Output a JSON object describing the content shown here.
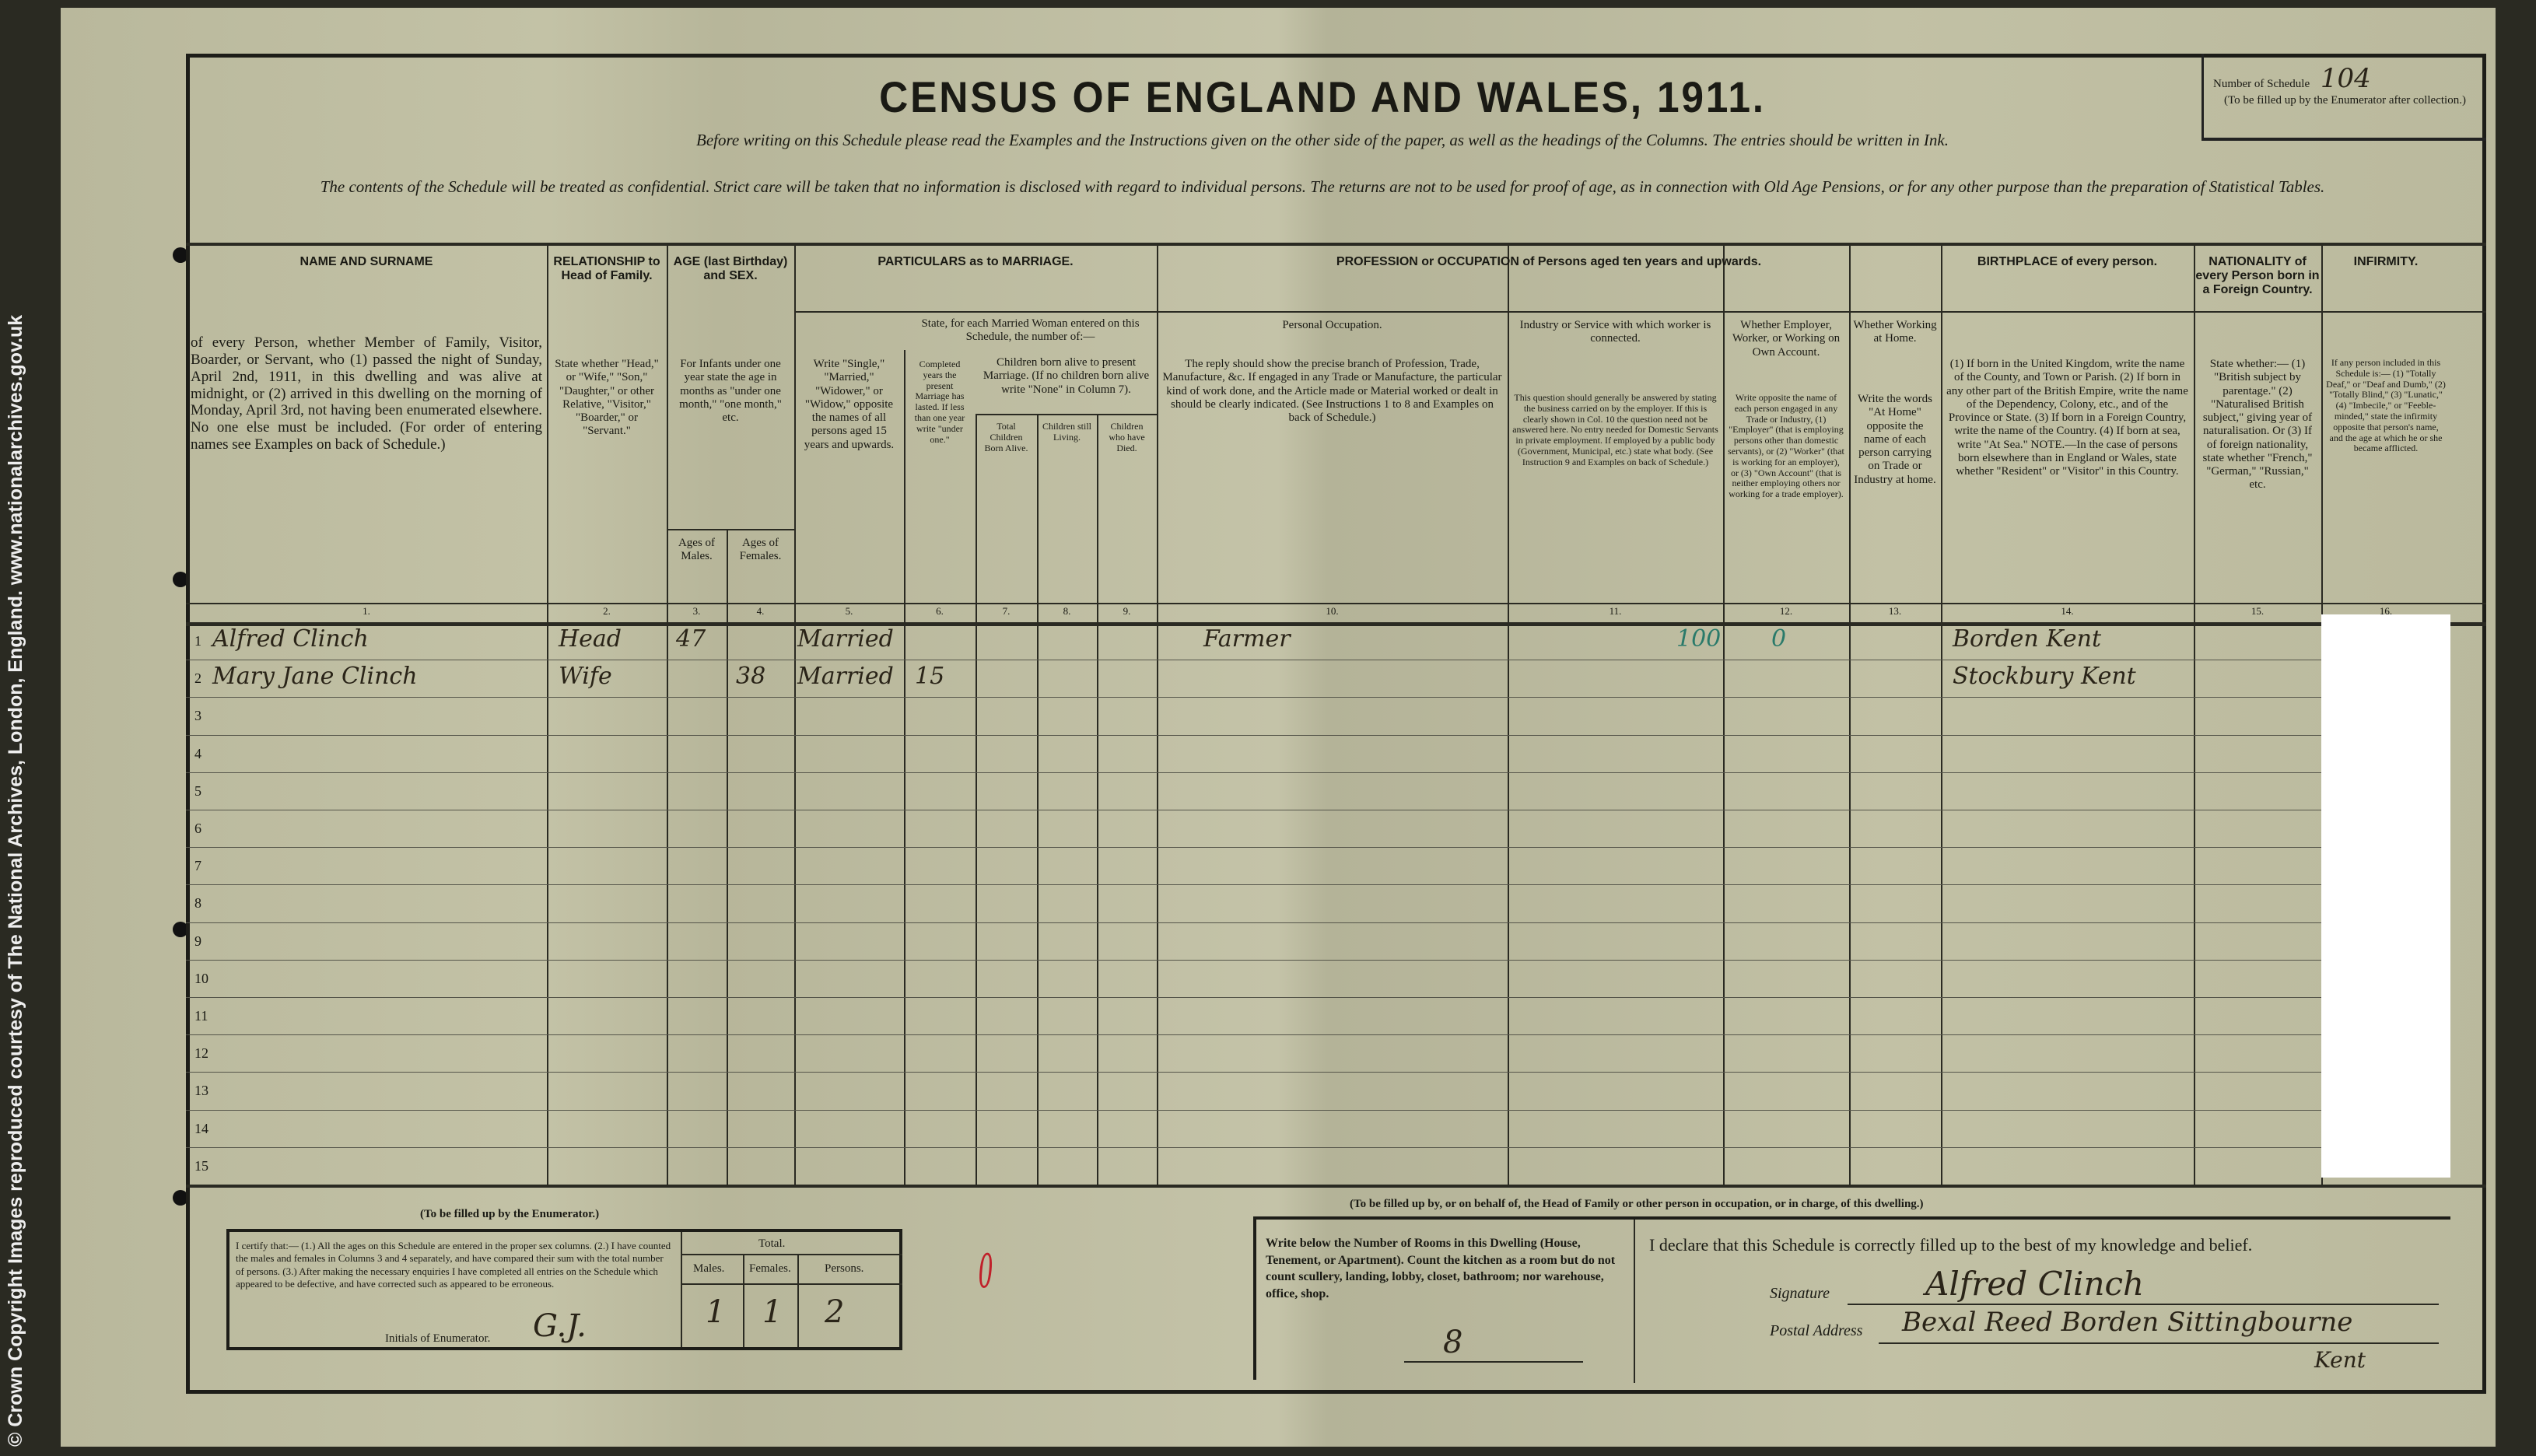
{
  "copyright": "© Crown Copyright Images reproduced courtesy of The National Archives, London, England. www.nationalarchives.gov.uk",
  "title": "CENSUS OF ENGLAND AND WALES, 1911.",
  "instruction1": "Before writing on this Schedule please read the Examples and the Instructions given on the other side of the paper, as well as the headings of the Columns. The entries should be written in Ink.",
  "instruction2": "The contents of the Schedule will be treated as confidential. Strict care will be taken that no information is disclosed with regard to individual persons. The returns are not to be used for proof of age, as in connection with Old Age Pensions, or for any other purpose than the preparation of Statistical Tables.",
  "schedule": {
    "label": "Number of Schedule",
    "value": "104",
    "note": "(To be filled up by the Enumerator after collection.)"
  },
  "columns": [
    {
      "num": "1.",
      "head": "NAME AND SURNAME",
      "sub": "of every Person, whether Member of Family, Visitor, Boarder, or Servant, who (1) passed the night of Sunday, April 2nd, 1911, in this dwelling and was alive at midnight, or (2) arrived in this dwelling on the morning of Monday, April 3rd, not having been enumerated elsewhere. No one else must be included. (For order of entering names see Examples on back of Schedule.)"
    },
    {
      "num": "2.",
      "head": "RELATIONSHIP to Head of Family.",
      "sub": "State whether \"Head,\" or \"Wife,\" \"Son,\" \"Daughter,\" or other Relative, \"Visitor,\" \"Boarder,\" or \"Servant.\""
    },
    {
      "num": "3.",
      "head": "AGE (last Birthday) and SEX.",
      "sub": "For Infants under one year state the age in months as \"under one month,\" \"one month,\" etc.",
      "sub2": "Ages of Males."
    },
    {
      "num": "4.",
      "sub2": "Ages of Females."
    },
    {
      "num": "5.",
      "head": "PARTICULARS as to MARRIAGE.",
      "sub": "Write \"Single,\" \"Married,\" \"Widower,\" or \"Widow,\" opposite the names of all persons aged 15 years and upwards."
    },
    {
      "num": "6.",
      "sub0": "State, for each Married Woman entered on this Schedule, the number of:—",
      "sub": "Completed years the present Marriage has lasted. If less than one year write \"under one.\""
    },
    {
      "num": "7.",
      "sub0": "Children born alive to present Marriage. (If no children born alive write \"None\" in Column 7).",
      "sub": "Total Children Born Alive."
    },
    {
      "num": "8.",
      "sub": "Children still Living."
    },
    {
      "num": "9.",
      "sub": "Children who have Died."
    },
    {
      "num": "10.",
      "head": "PROFESSION or OCCUPATION of Persons aged ten years and upwards.",
      "sub0": "Personal Occupation.",
      "sub": "The reply should show the precise branch of Profession, Trade, Manufacture, &c. If engaged in any Trade or Manufacture, the particular kind of work done, and the Article made or Material worked or dealt in should be clearly indicated. (See Instructions 1 to 8 and Examples on back of Schedule.)"
    },
    {
      "num": "11.",
      "sub0": "Industry or Service with which worker is connected.",
      "sub": "This question should generally be answered by stating the business carried on by the employer. If this is clearly shown in Col. 10 the question need not be answered here. No entry needed for Domestic Servants in private employment. If employed by a public body (Government, Municipal, etc.) state what body. (See Instruction 9 and Examples on back of Schedule.)"
    },
    {
      "num": "12.",
      "sub0": "Whether Employer, Worker, or Working on Own Account.",
      "sub": "Write opposite the name of each person engaged in any Trade or Industry, (1) \"Employer\" (that is employing persons other than domestic servants), or (2) \"Worker\" (that is working for an employer), or (3) \"Own Account\" (that is neither employing others nor working for a trade employer)."
    },
    {
      "num": "13.",
      "sub0": "Whether Working at Home.",
      "sub": "Write the words \"At Home\" opposite the name of each person carrying on Trade or Industry at home."
    },
    {
      "num": "14.",
      "head": "BIRTHPLACE of every person.",
      "sub": "(1) If born in the United Kingdom, write the name of the County, and Town or Parish. (2) If born in any other part of the British Empire, write the name of the Dependency, Colony, etc., and of the Province or State. (3) If born in a Foreign Country, write the name of the Country. (4) If born at sea, write \"At Sea.\" NOTE.—In the case of persons born elsewhere than in England or Wales, state whether \"Resident\" or \"Visitor\" in this Country."
    },
    {
      "num": "15.",
      "head": "NATIONALITY of every Person born in a Foreign Country.",
      "sub": "State whether:— (1) \"British subject by parentage.\" (2) \"Naturalised British subject,\" giving year of naturalisation. Or (3) If of foreign nationality, state whether \"French,\" \"German,\" \"Russian,\" etc."
    },
    {
      "num": "16.",
      "head": "INFIRMITY.",
      "sub": "If any person included in this Schedule is:— (1) \"Totally Deaf,\" or \"Deaf and Dumb,\" (2) \"Totally Blind,\" (3) \"Lunatic,\" (4) \"Imbecile,\" or \"Feeble-minded,\" state the infirmity opposite that person's name, and the age at which he or she became afflicted."
    }
  ],
  "rows": [
    {
      "n": "1",
      "name": "Alfred Clinch",
      "rel": "Head",
      "male": "47",
      "female": "",
      "marr": "Married",
      "years": "",
      "occ": "Farmer",
      "code": "100",
      "emp": "0",
      "birth": "Borden Kent"
    },
    {
      "n": "2",
      "name": "Mary Jane Clinch",
      "rel": "Wife",
      "male": "",
      "female": "38",
      "marr": "Married",
      "years": "15",
      "occ": "",
      "code": "",
      "emp": "",
      "birth": "Stockbury Kent"
    },
    {
      "n": "3"
    },
    {
      "n": "4"
    },
    {
      "n": "5"
    },
    {
      "n": "6"
    },
    {
      "n": "7"
    },
    {
      "n": "8"
    },
    {
      "n": "9"
    },
    {
      "n": "10"
    },
    {
      "n": "11"
    },
    {
      "n": "12"
    },
    {
      "n": "13"
    },
    {
      "n": "14"
    },
    {
      "n": "15"
    }
  ],
  "enumerator": {
    "heading": "(To be filled up by the Enumerator.)",
    "certify": "I certify that:— (1.) All the ages on this Schedule are entered in the proper sex columns. (2.) I have counted the males and females in Columns 3 and 4 separately, and have compared their sum with the total number of persons. (3.) After making the necessary enquiries I have completed all entries on the Schedule which appeared to be defective, and have corrected such as appeared to be erroneous.",
    "initials_label": "Initials of Enumerator.",
    "initials": "G.J.",
    "total_label": "Total.",
    "males_label": "Males.",
    "females_label": "Females.",
    "persons_label": "Persons.",
    "males": "1",
    "females": "1",
    "persons": "2",
    "red_mark": "0"
  },
  "householder": {
    "heading": "(To be filled up by, or on behalf of, the Head of Family or other person in occupation, or in charge, of this dwelling.)",
    "rooms_text": "Write below the Number of Rooms in this Dwelling (House, Tenement, or Apartment). Count the kitchen as a room but do not count scullery, landing, lobby, closet, bathroom; nor warehouse, office, shop.",
    "rooms": "8",
    "declare": "I declare that this Schedule is correctly filled up to the best of my knowledge and belief.",
    "signature_label": "Signature",
    "signature": "Alfred Clinch",
    "address_label": "Postal Address",
    "address": "Bexal Reed Borden Sittingbourne",
    "address2": "Kent"
  }
}
